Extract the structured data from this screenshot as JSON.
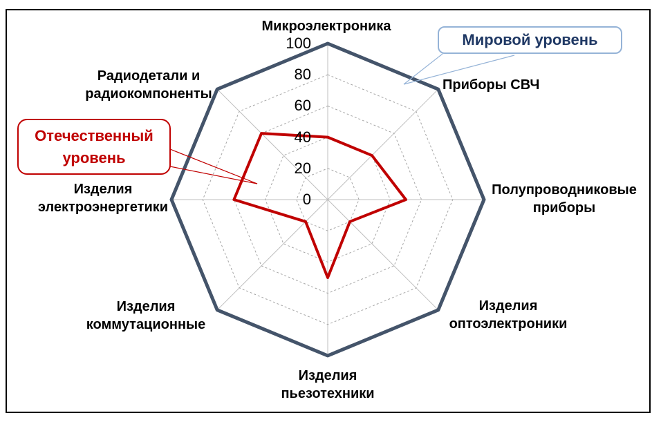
{
  "chart_data": {
    "type": "radar",
    "categories": [
      "Микроэлектроника",
      "Приборы СВЧ",
      "Полупроводниковые приборы",
      "Изделия оптоэлектроники",
      "Изделия пьезотехники",
      "Изделия коммутационные",
      "Изделия электроэнергетики",
      "Радиодетали и радиокомпоненты"
    ],
    "series": [
      {
        "name": "Мировой уровень",
        "values": [
          100,
          100,
          100,
          100,
          100,
          100,
          100,
          100
        ],
        "color": "#44546A"
      },
      {
        "name": "Отечественный уровень",
        "values": [
          40,
          40,
          50,
          20,
          50,
          20,
          60,
          60
        ],
        "color": "#C00000"
      }
    ],
    "axis": {
      "min": 0,
      "max": 100,
      "step": 20,
      "tick_labels": [
        "0",
        "20",
        "40",
        "60",
        "80",
        "100"
      ]
    },
    "grid": "dashed-rings",
    "legend": "annotation-callouts"
  },
  "callouts": {
    "world": {
      "text": "Мировой уровень",
      "text_color": "#1F3864",
      "border_color": "#95B3D7"
    },
    "domestic": {
      "text": "Отечественный уровень",
      "text_color": "#C00000",
      "border_color": "#C00000"
    }
  },
  "colors": {
    "world_series": "#44546A",
    "domestic_series": "#C00000",
    "gridline": "#A6A6A6",
    "spoke": "#BFBFBF",
    "frame_border": "#000000",
    "background": "#FFFFFF"
  }
}
